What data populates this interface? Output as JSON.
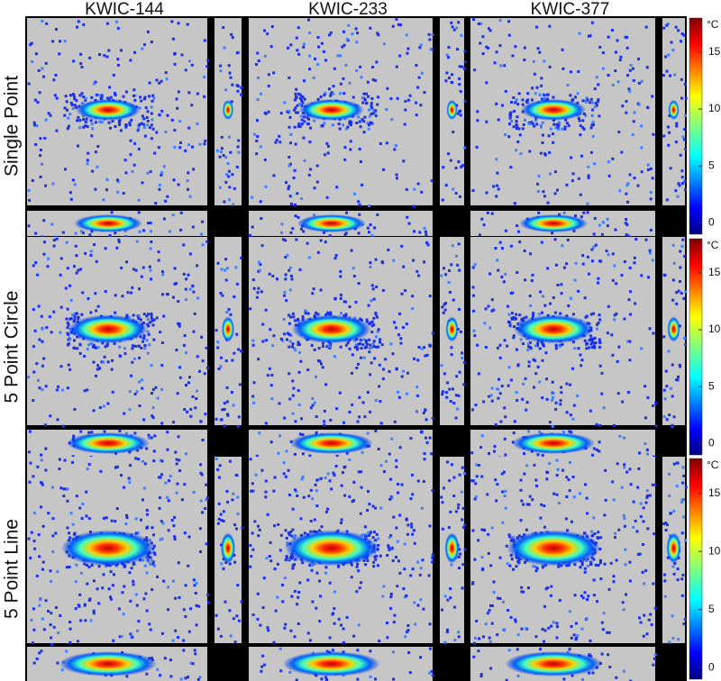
{
  "columns": [
    "KWIC-144",
    "KWIC-233",
    "KWIC-377"
  ],
  "rows": [
    "Single Point",
    "5 Point Circle",
    "5 Point Line"
  ],
  "colorbar": {
    "unit": "°C",
    "clim": [
      -1,
      18
    ],
    "ticks": [
      0,
      5,
      10,
      15
    ]
  }
}
